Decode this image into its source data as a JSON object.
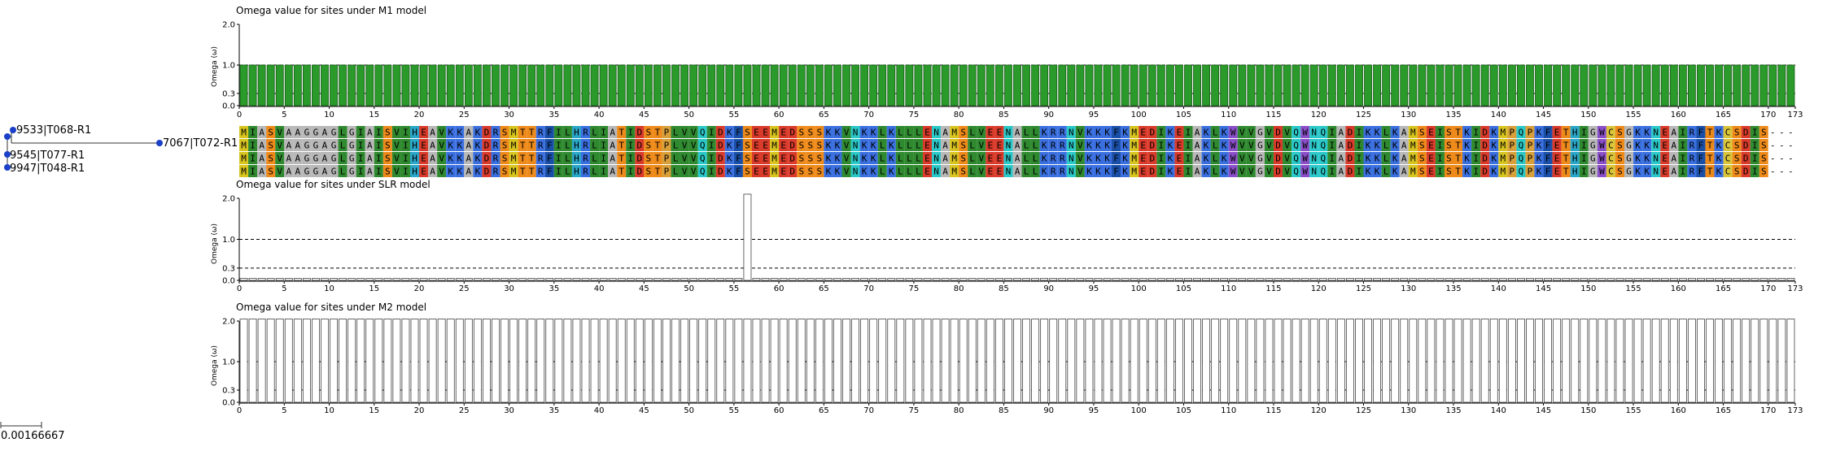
{
  "tree": {
    "leaves": [
      "9533|T068-R1",
      "7067|T072-R1",
      "9545|T077-R1",
      "9947|T048-R1"
    ],
    "scale_label": "0.00166667"
  },
  "sequences": {
    "length": 173,
    "rows": [
      "MIASVAAGGAGLGIAISVIHEAVKKAKDRSMTTRFILHRLIATIDSTPLVVQIDKFSEEMEDSSSKKVNKKLKLLLENAMSLVEENALLKRRNVKKKFKMEDIKEIAKLKWVVGVDVQWNQIADIKKLKAMSEISTKIDKMPQPKFETHIGWCSGKKNEAIRFTKCSDIS",
      "MIASVAAGGAGLGIAISVIHEAVKKAKDRSMTTRFILHRLIATIDSTPLVVQIDKFSEEMEDSSSKKVNKKLKLLLENAMSLVEENALLKRRNVKKKFKMEDIKEIAKLKWVVGVDVQWNQIADIKKLKAMSEISTKIDKMPQPKFETHIGWCSGKKNEAIRFTKCSDIS",
      "MIASVAAGGAGLGIAISVIHEAVKKAKDRSMTTRFILHRLIATIDSTPLVVQIDKFSEEMEDSSSKKVNKKLKLLLENAMSLVEENALLKRRNVKKKFKMEDIKEIAKLKWVVGVDVQWNQIADIKKLKAMSEISTKIDKMPQPKFETHIGWCSGKKNEAIRFTKCSDIS",
      "MIASVAAGGAGLGIAISVIHEAVKKAKDRSMTTRFILHRLIATIDSTPLVVQIDKFSEEMEDSSSKKVNKKLKLLLENAMSLVEENALLKRRNVKKKFKMEDIKEIAKLKWVVGVDVQWNQIADIKKLKAMSEISTKIDKMPQPKFETHIGWCSGKKNEAIRFTKCSDIS"
    ],
    "colors": {
      "M": "#d7c41e",
      "I": "#2f8a2f",
      "V": "#2f8a2f",
      "L": "#2f8a2f",
      "A": "#b8b8b8",
      "G": "#b8b8b8",
      "S": "#ee8a1a",
      "T": "#ee8a1a",
      "K": "#3a6fe0",
      "R": "#3a6fe0",
      "H": "#2aa6c8",
      "D": "#d93a2a",
      "E": "#d93a2a",
      "N": "#2ac8c8",
      "Q": "#2ac8c8",
      "F": "#1a4fa8",
      "W": "#8a4fc8",
      "Y": "#2aa6c8",
      "C": "#d9c43a",
      "P": "#d9a03a"
    }
  },
  "chart_data": [
    {
      "type": "bar",
      "title": "Omega value for sites under M1 model",
      "ylabel": "Omega (ω)",
      "xlim": [
        0,
        173
      ],
      "ylim": [
        0,
        2.0
      ],
      "yticks": [
        "0.0",
        "0.3",
        "1.0",
        "2.0"
      ],
      "xticks": [
        "0",
        "5",
        "10",
        "15",
        "20",
        "25",
        "30",
        "35",
        "40",
        "45",
        "50",
        "55",
        "60",
        "65",
        "70",
        "75",
        "80",
        "85",
        "90",
        "95",
        "100",
        "105",
        "110",
        "115",
        "120",
        "125",
        "130",
        "135",
        "140",
        "145",
        "150",
        "155",
        "160",
        "165",
        "170",
        "173"
      ],
      "uniform_value": 1.0,
      "bar_color": "#2a9a2a",
      "edge_color": "#1a5a1a"
    },
    {
      "type": "bar",
      "title": "Omega value for sites under SLR model",
      "ylabel": "Omega (ω)",
      "xlim": [
        0,
        173
      ],
      "ylim": [
        0,
        2.0
      ],
      "yticks": [
        "0.0",
        "0.3",
        "1.0",
        "2.0"
      ],
      "xticks": [
        "0",
        "5",
        "10",
        "15",
        "20",
        "25",
        "30",
        "35",
        "40",
        "45",
        "50",
        "55",
        "60",
        "65",
        "70",
        "75",
        "80",
        "85",
        "90",
        "95",
        "100",
        "105",
        "110",
        "115",
        "120",
        "125",
        "130",
        "135",
        "140",
        "145",
        "150",
        "155",
        "160",
        "165",
        "170",
        "173"
      ],
      "uniform_value": 0.05,
      "peaks": [
        {
          "site": 56,
          "value": 2.1
        }
      ],
      "bar_color": "#ffffff",
      "edge_color": "#444444"
    },
    {
      "type": "bar",
      "title": "Omega value for sites under M2 model",
      "ylabel": "Omega (ω)",
      "xlim": [
        0,
        173
      ],
      "ylim": [
        0,
        2.0
      ],
      "yticks": [
        "0.0",
        "0.3",
        "1.0",
        "2.0"
      ],
      "xticks": [
        "0",
        "5",
        "10",
        "15",
        "20",
        "25",
        "30",
        "35",
        "40",
        "45",
        "50",
        "55",
        "60",
        "65",
        "70",
        "75",
        "80",
        "85",
        "90",
        "95",
        "100",
        "105",
        "110",
        "115",
        "120",
        "125",
        "130",
        "135",
        "140",
        "145",
        "150",
        "155",
        "160",
        "165",
        "170",
        "173"
      ],
      "uniform_value": 2.05,
      "bar_color": "#ffffff",
      "edge_color": "#444444"
    }
  ]
}
